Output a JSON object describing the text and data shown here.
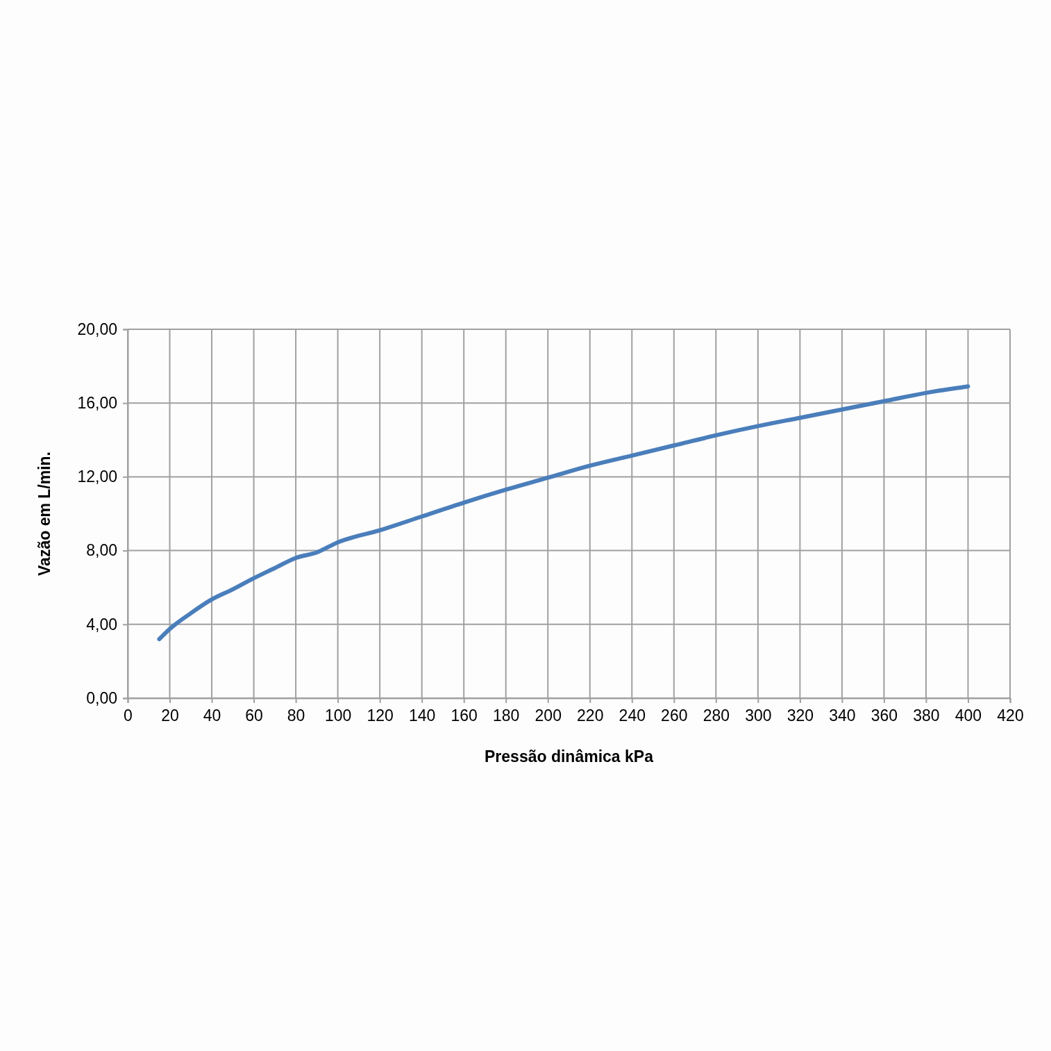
{
  "chart_data": {
    "type": "line",
    "xlabel": "Pressão dinâmica kPa",
    "ylabel": "Vazão em L/min.",
    "x": [
      15,
      20,
      30,
      40,
      50,
      60,
      70,
      80,
      90,
      100,
      120,
      140,
      160,
      180,
      200,
      220,
      240,
      260,
      280,
      300,
      320,
      340,
      360,
      380,
      400
    ],
    "series": [
      {
        "color": "#4a7ebb",
        "values": [
          3.2,
          3.75,
          4.6,
          5.35,
          5.9,
          6.5,
          7.05,
          7.6,
          7.9,
          8.45,
          9.1,
          9.85,
          10.6,
          11.3,
          11.95,
          12.6,
          13.15,
          13.7,
          14.25,
          14.75,
          15.2,
          15.65,
          16.1,
          16.55,
          16.9
        ]
      }
    ],
    "xlim": [
      0,
      420
    ],
    "xticks": [
      0,
      20,
      40,
      60,
      80,
      100,
      120,
      140,
      160,
      180,
      200,
      220,
      240,
      260,
      280,
      300,
      320,
      340,
      360,
      380,
      400,
      420
    ],
    "ylim": [
      0,
      20
    ],
    "yticks": [
      {
        "value": 0,
        "label": "0,00"
      },
      {
        "value": 4,
        "label": "4,00"
      },
      {
        "value": 8,
        "label": "8,00"
      },
      {
        "value": 12,
        "label": "12,00"
      },
      {
        "value": 16,
        "label": "16,00"
      },
      {
        "value": 20,
        "label": "20,00"
      }
    ],
    "grid": true,
    "marker": "none",
    "line_style": "solid"
  }
}
